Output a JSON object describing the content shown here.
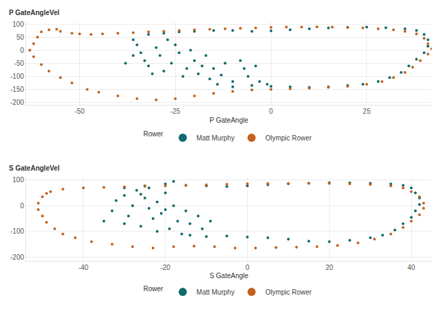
{
  "chart_data": [
    {
      "type": "scatter",
      "x_label": "P GateAngle",
      "y_label": "P GateAngleVel",
      "legend_title": "Rower",
      "legend": "bottom",
      "grid": true,
      "marker": "circle",
      "xlim": [
        -64,
        42
      ],
      "xticks": [
        -50,
        -25,
        0,
        25
      ],
      "ylim": [
        -210,
        108
      ],
      "yticks": [
        -200,
        -150,
        -100,
        -50,
        0,
        50,
        100
      ],
      "series": [
        {
          "name": "Matt Murphy",
          "color": "#0f6b6e",
          "x": [
            -32,
            -28,
            -24,
            -20,
            -15,
            -10,
            -5,
            0,
            5,
            10,
            15,
            20,
            25,
            30,
            35,
            38,
            40,
            41,
            41,
            40,
            38,
            36,
            34,
            31,
            28,
            24,
            20,
            15,
            10,
            5,
            0,
            -5,
            -10,
            -14,
            -36,
            -35,
            -34,
            -33,
            -32,
            -30,
            -29,
            -28,
            -27,
            -26,
            -25,
            -24,
            -23,
            -22,
            -21,
            -20,
            -19,
            -18,
            -17,
            -16,
            -15,
            -13,
            -12,
            -10,
            -8,
            -7,
            -6,
            -4,
            -3,
            -1,
            -31,
            -36,
            -38
          ],
          "values": [
            60,
            65,
            70,
            72,
            75,
            75,
            72,
            74,
            78,
            82,
            85,
            87,
            88,
            86,
            82,
            75,
            60,
            40,
            15,
            -10,
            -35,
            -60,
            -85,
            -105,
            -120,
            -130,
            -135,
            -140,
            -142,
            -140,
            -138,
            -135,
            -140,
            -130,
            40,
            20,
            -10,
            -40,
            -60,
            10,
            -20,
            -80,
            40,
            -50,
            20,
            -10,
            -100,
            -70,
            0,
            -40,
            -90,
            -60,
            -20,
            -110,
            -70,
            -95,
            -50,
            -120,
            -40,
            -70,
            -100,
            -60,
            -120,
            -130,
            -90,
            -20,
            -50
          ]
        },
        {
          "name": "Olympic Rower",
          "color": "#c4621c",
          "x": [
            -58,
            -55,
            -52,
            -50,
            -47,
            -44,
            -40,
            -36,
            -32,
            -28,
            -24,
            -20,
            -16,
            -12,
            -8,
            -4,
            0,
            4,
            8,
            12,
            16,
            20,
            24,
            28,
            32,
            35,
            38,
            40,
            41,
            42,
            41,
            39,
            37,
            35,
            32,
            29,
            25,
            20,
            15,
            10,
            5,
            0,
            -5,
            -10,
            -15,
            -20,
            -25,
            -30,
            -35,
            -40,
            -45,
            -48,
            -52,
            -55,
            -58,
            -60,
            -62,
            -63,
            -62,
            -61,
            -60,
            -56
          ],
          "values": [
            78,
            72,
            65,
            62,
            60,
            62,
            65,
            67,
            70,
            72,
            75,
            78,
            80,
            82,
            84,
            85,
            87,
            88,
            88,
            89,
            88,
            87,
            85,
            82,
            78,
            72,
            62,
            45,
            25,
            5,
            -15,
            -40,
            -65,
            -85,
            -105,
            -120,
            -130,
            -138,
            -142,
            -145,
            -148,
            -150,
            -152,
            -158,
            -165,
            -175,
            -185,
            -190,
            -185,
            -175,
            -160,
            -150,
            -125,
            -105,
            -80,
            -55,
            -25,
            0,
            25,
            50,
            70,
            80
          ]
        }
      ]
    },
    {
      "type": "scatter",
      "x_label": "S GateAngle",
      "y_label": "S GateAngleVel",
      "legend_title": "Rower",
      "legend": "bottom",
      "grid": true,
      "marker": "circle",
      "xlim": [
        -54,
        45
      ],
      "xticks": [
        -40,
        -20,
        0,
        20,
        40
      ],
      "ylim": [
        -215,
        110
      ],
      "yticks": [
        -200,
        -100,
        0,
        100
      ],
      "series": [
        {
          "name": "Matt Murphy",
          "color": "#0f6b6e",
          "x": [
            -30,
            -25,
            -20,
            -18,
            -15,
            -10,
            -5,
            0,
            5,
            10,
            15,
            20,
            25,
            30,
            35,
            38,
            40,
            41,
            42,
            42,
            41,
            40,
            38,
            36,
            33,
            30,
            25,
            20,
            15,
            10,
            5,
            0,
            -5,
            -10,
            -14,
            -35,
            -33,
            -32,
            -30,
            -29,
            -28,
            -27,
            -26,
            -25,
            -24,
            -23,
            -22,
            -21,
            -20,
            -19,
            -18,
            -17,
            -16,
            -15,
            -14,
            -12,
            -11,
            -9,
            -22,
            -30,
            -26,
            -20,
            -24
          ],
          "values": [
            70,
            78,
            85,
            95,
            80,
            78,
            75,
            78,
            82,
            86,
            88,
            90,
            90,
            88,
            85,
            80,
            70,
            50,
            30,
            5,
            -20,
            -45,
            -70,
            -95,
            -115,
            -125,
            -135,
            -140,
            -138,
            -130,
            -125,
            -122,
            -118,
            -120,
            -115,
            -60,
            -20,
            20,
            40,
            -40,
            0,
            60,
            -80,
            30,
            -10,
            -50,
            15,
            -30,
            50,
            -90,
            0,
            -60,
            -110,
            -20,
            -70,
            -40,
            -90,
            -60,
            -100,
            -70,
            45,
            -15,
            70
          ]
        },
        {
          "name": "Olympic Rower",
          "color": "#c4621c",
          "x": [
            -48,
            -45,
            -40,
            -35,
            -30,
            -25,
            -20,
            -15,
            -10,
            -5,
            0,
            5,
            10,
            15,
            20,
            25,
            30,
            35,
            38,
            40,
            42,
            43,
            43,
            42,
            40,
            38,
            35,
            31,
            27,
            22,
            17,
            12,
            7,
            2,
            -3,
            -8,
            -13,
            -18,
            -23,
            -28,
            -33,
            -38,
            -42,
            -45,
            -47,
            -49,
            -50,
            -51,
            -51,
            -50,
            -49
          ],
          "values": [
            55,
            65,
            70,
            72,
            74,
            76,
            78,
            80,
            82,
            84,
            86,
            87,
            87,
            88,
            87,
            86,
            83,
            78,
            70,
            55,
            35,
            10,
            -10,
            -35,
            -60,
            -85,
            -110,
            -130,
            -145,
            -155,
            -160,
            -162,
            -163,
            -165,
            -165,
            -160,
            -158,
            -160,
            -165,
            -160,
            -150,
            -140,
            -125,
            -110,
            -90,
            -65,
            -40,
            -15,
            10,
            35,
            48
          ]
        }
      ]
    }
  ]
}
